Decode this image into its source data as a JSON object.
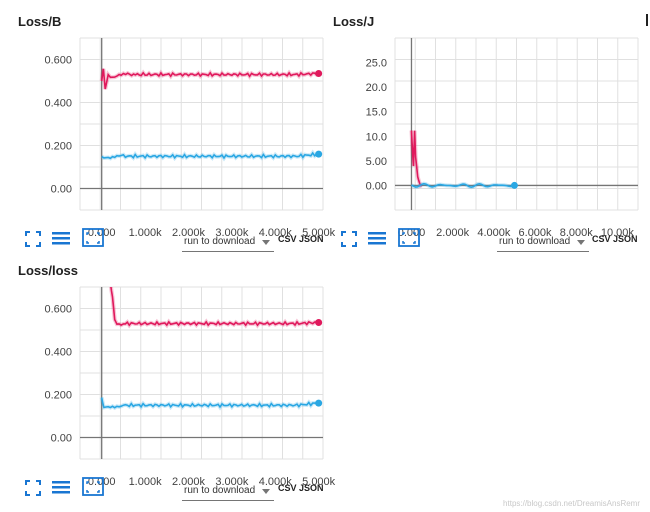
{
  "colors": {
    "series_b": "#e0195c",
    "series_a": "#2aa7e3",
    "axis": "#757575",
    "grid": "#e0e0e0",
    "icon": "#1976d2"
  },
  "icons": {
    "fit": "fit-domain-icon",
    "log": "data-series-icon",
    "expand": "expand-card-icon"
  },
  "toolbar": {
    "download_select": "run to download",
    "csv": "CSV",
    "json": "JSON"
  },
  "watermark": "https://blog.csdn.net/DreamisAnsRemr",
  "chart_data": [
    {
      "id": "loss-b",
      "type": "line",
      "title": "Loss/B",
      "xlim": [
        -500,
        5100
      ],
      "ylim": [
        -0.1,
        0.7
      ],
      "x_ticks": [
        0,
        1000,
        2000,
        3000,
        4000,
        5000
      ],
      "x_tick_labels": [
        "0.000",
        "1.000k",
        "2.000k",
        "3.000k",
        "4.000k",
        "5.000k"
      ],
      "y_ticks": [
        0,
        0.2,
        0.4,
        0.6
      ],
      "y_tick_labels": [
        "0.00",
        "0.200",
        "0.400",
        "0.600"
      ],
      "grid": true,
      "series": [
        {
          "color": "#e0195c",
          "end_marker": true,
          "points": [
            [
              0,
              0.5
            ],
            [
              40,
              0.55
            ],
            [
              80,
              0.47
            ],
            [
              150,
              0.53
            ],
            [
              250,
              0.52
            ],
            [
              400,
              0.53
            ],
            [
              600,
              0.53
            ],
            [
              1000,
              0.53
            ],
            [
              1500,
              0.53
            ],
            [
              2000,
              0.53
            ],
            [
              2500,
              0.53
            ],
            [
              3000,
              0.53
            ],
            [
              3500,
              0.53
            ],
            [
              4000,
              0.53
            ],
            [
              4500,
              0.53
            ],
            [
              5000,
              0.535
            ]
          ]
        },
        {
          "color": "#2aa7e3",
          "end_marker": true,
          "points": [
            [
              0,
              0.15
            ],
            [
              200,
              0.145
            ],
            [
              500,
              0.15
            ],
            [
              1000,
              0.15
            ],
            [
              1500,
              0.15
            ],
            [
              2000,
              0.15
            ],
            [
              2500,
              0.15
            ],
            [
              3000,
              0.15
            ],
            [
              3500,
              0.15
            ],
            [
              4000,
              0.15
            ],
            [
              4500,
              0.15
            ],
            [
              5000,
              0.16
            ]
          ]
        }
      ]
    },
    {
      "id": "loss-j",
      "type": "line",
      "title": "Loss/J",
      "xlim": [
        -800,
        11000
      ],
      "ylim": [
        -5,
        30
      ],
      "x_ticks": [
        0,
        2000,
        4000,
        6000,
        8000,
        10000
      ],
      "x_tick_labels": [
        "0.000",
        "2.000k",
        "4.000k",
        "6.000k",
        "8.000k",
        "10.00k"
      ],
      "y_ticks": [
        0,
        5,
        10,
        15,
        20,
        25
      ],
      "y_tick_labels": [
        "0.00",
        "5.00",
        "10.0",
        "15.0",
        "20.0",
        "25.0"
      ],
      "grid": true,
      "series": [
        {
          "color": "#e0195c",
          "end_marker": false,
          "points": [
            [
              0,
              11
            ],
            [
              50,
              7
            ],
            [
              100,
              4
            ],
            [
              150,
              11
            ],
            [
              200,
              6
            ],
            [
              300,
              2
            ],
            [
              400,
              0.5
            ],
            [
              500,
              0
            ]
          ]
        },
        {
          "color": "#2aa7e3",
          "end_marker": true,
          "points": [
            [
              0,
              0
            ],
            [
              1000,
              0
            ],
            [
              2000,
              0
            ],
            [
              3000,
              0
            ],
            [
              4000,
              0
            ],
            [
              5000,
              0
            ]
          ]
        }
      ]
    },
    {
      "id": "loss-loss",
      "type": "line",
      "title": "Loss/loss",
      "xlim": [
        -500,
        5100
      ],
      "ylim": [
        -0.1,
        0.7
      ],
      "x_ticks": [
        0,
        1000,
        2000,
        3000,
        4000,
        5000
      ],
      "x_tick_labels": [
        "0.000",
        "1.000k",
        "2.000k",
        "3.000k",
        "4.000k",
        "5.000k"
      ],
      "y_ticks": [
        0,
        0.2,
        0.4,
        0.6
      ],
      "y_tick_labels": [
        "0.00",
        "0.200",
        "0.400",
        "0.600"
      ],
      "grid": true,
      "series": [
        {
          "color": "#e0195c",
          "end_marker": true,
          "points": [
            [
              200,
              0.72
            ],
            [
              250,
              0.65
            ],
            [
              300,
              0.55
            ],
            [
              350,
              0.53
            ],
            [
              500,
              0.53
            ],
            [
              1000,
              0.53
            ],
            [
              1500,
              0.53
            ],
            [
              2000,
              0.53
            ],
            [
              2500,
              0.53
            ],
            [
              3000,
              0.53
            ],
            [
              3500,
              0.53
            ],
            [
              4000,
              0.53
            ],
            [
              4500,
              0.53
            ],
            [
              5000,
              0.535
            ]
          ]
        },
        {
          "color": "#2aa7e3",
          "end_marker": true,
          "points": [
            [
              0,
              0.18
            ],
            [
              50,
              0.14
            ],
            [
              200,
              0.145
            ],
            [
              500,
              0.15
            ],
            [
              1000,
              0.15
            ],
            [
              1500,
              0.15
            ],
            [
              2000,
              0.15
            ],
            [
              2500,
              0.15
            ],
            [
              3000,
              0.15
            ],
            [
              3500,
              0.15
            ],
            [
              4000,
              0.15
            ],
            [
              4500,
              0.15
            ],
            [
              5000,
              0.16
            ]
          ]
        }
      ]
    }
  ]
}
